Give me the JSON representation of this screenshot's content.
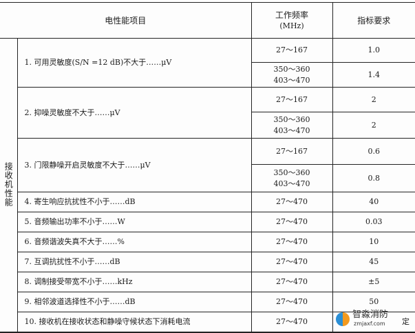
{
  "header": {
    "item": "电性能项目",
    "freq_line1": "工作频率",
    "freq_line2": "(MHz)",
    "req": "指标要求"
  },
  "category": "接收机性能",
  "rows": [
    {
      "label": "1. 可用灵敏度(S/N =12 dB)不大于……μV",
      "sub": [
        {
          "freq": [
            "27～167"
          ],
          "value": "1.0"
        },
        {
          "freq": [
            "350～360",
            "403～470"
          ],
          "value": "1.4"
        }
      ]
    },
    {
      "label": "2. 抑噪灵敏度不大于……μV",
      "sub": [
        {
          "freq": [
            "27～167"
          ],
          "value": "2"
        },
        {
          "freq": [
            "350～360",
            "403～470"
          ],
          "value": "2"
        }
      ]
    },
    {
      "label": "3. 门限静噪开启灵敏度不大于……μV",
      "sub": [
        {
          "freq": [
            "27～167"
          ],
          "value": "0.6"
        },
        {
          "freq": [
            "350～360",
            "403～470"
          ],
          "value": "0.8"
        }
      ]
    },
    {
      "label": "4. 寄生响应抗扰性不小于……dB",
      "freq": "27～470",
      "value": "40"
    },
    {
      "label": "5. 音频输出功率不小于……W",
      "freq": "27～470",
      "value": "0.03"
    },
    {
      "label": "6. 音频谐波失真不大于……%",
      "freq": "27～470",
      "value": "10"
    },
    {
      "label": "7. 互调抗扰性不小于……dB",
      "freq": "27～470",
      "value": "45"
    },
    {
      "label": "8. 调制接受带宽不小于……kHz",
      "freq": "27～470",
      "value": "±5"
    },
    {
      "label": "9. 相邻波道选择性不小于……dB",
      "freq": "27～470",
      "value": "50"
    },
    {
      "label": "10. 接收机在接收状态和静噪守候状态下消耗电流",
      "freq": "27～470",
      "value": "定"
    }
  ],
  "watermark": {
    "name": "智淼消防",
    "url": "zmjaxf.com"
  }
}
